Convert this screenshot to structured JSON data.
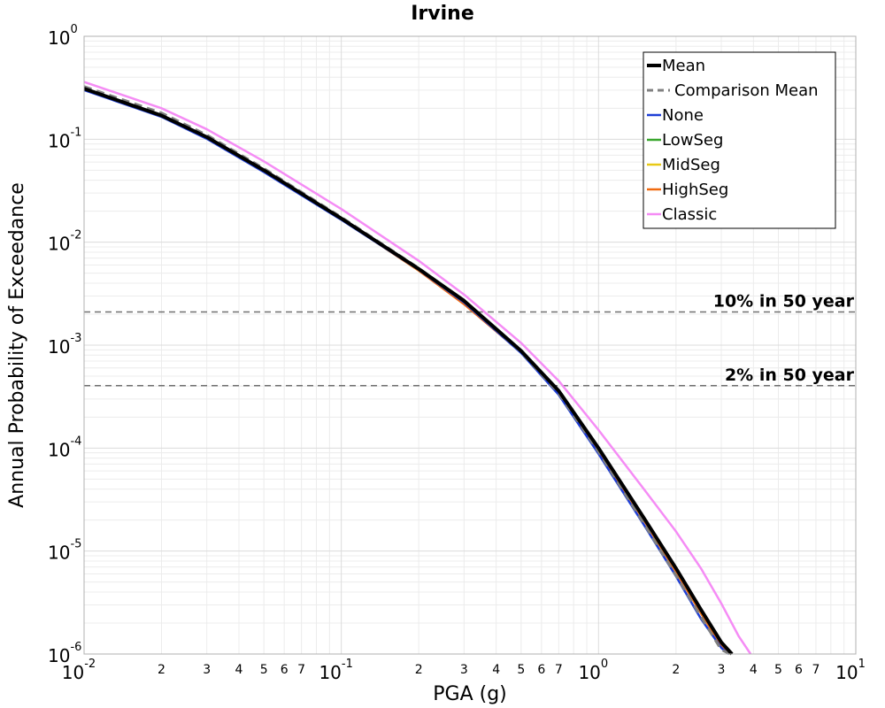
{
  "chart_data": {
    "type": "line",
    "title": "Irvine",
    "xlabel": "PGA (g)",
    "ylabel": "Annual Probability of Exceedance",
    "xscale": "log",
    "yscale": "log",
    "xlim": [
      0.01,
      10
    ],
    "ylim": [
      1e-06,
      1
    ],
    "grid": true,
    "legend_position": "top-right",
    "x_major_ticks": [
      {
        "base": "10",
        "exp": "-2"
      },
      {
        "base": "10",
        "exp": "-1"
      },
      {
        "base": "10",
        "exp": "0"
      },
      {
        "base": "10",
        "exp": "1"
      }
    ],
    "y_major_ticks": [
      {
        "base": "10",
        "exp": "0"
      },
      {
        "base": "10",
        "exp": "-1"
      },
      {
        "base": "10",
        "exp": "-2"
      },
      {
        "base": "10",
        "exp": "-3"
      },
      {
        "base": "10",
        "exp": "-4"
      },
      {
        "base": "10",
        "exp": "-5"
      },
      {
        "base": "10",
        "exp": "-6"
      }
    ],
    "x_minor_tick_labels": [
      "2",
      "3",
      "4",
      "5",
      "6",
      "7"
    ],
    "reference_lines": [
      {
        "label": "10% in 50 year",
        "y": 0.0021
      },
      {
        "label": "2% in 50 year",
        "y": 0.000404
      }
    ],
    "series": [
      {
        "name": "Mean",
        "color": "#000000",
        "style": "solid-thick",
        "x": [
          0.01,
          0.02,
          0.03,
          0.05,
          0.1,
          0.2,
          0.3,
          0.5,
          0.7,
          1.0,
          1.5,
          2.0,
          2.5,
          3.0,
          3.3
        ],
        "y": [
          0.31,
          0.17,
          0.105,
          0.05,
          0.017,
          0.0055,
          0.0027,
          0.00088,
          0.00036,
          0.0001,
          2.1e-05,
          6.8e-06,
          2.7e-06,
          1.3e-06,
          1e-06
        ]
      },
      {
        "name": "Comparison Mean",
        "color": "#808080",
        "style": "dashed",
        "x": [
          0.01,
          0.02,
          0.03,
          0.05,
          0.1,
          0.2,
          0.3,
          0.5,
          0.7,
          1.0,
          1.5,
          2.0,
          2.5,
          3.0,
          3.25
        ],
        "y": [
          0.325,
          0.18,
          0.11,
          0.052,
          0.0175,
          0.0056,
          0.0027,
          0.00086,
          0.00034,
          9.2e-05,
          1.85e-05,
          5.8e-06,
          2.3e-06,
          1.1e-06,
          1e-06
        ]
      },
      {
        "name": "None",
        "color": "#1f3fd6",
        "style": "solid",
        "x": [
          0.01,
          0.02,
          0.03,
          0.05,
          0.1,
          0.2,
          0.3,
          0.5,
          0.7,
          1.0,
          1.5,
          2.0,
          2.5,
          3.0,
          3.2
        ],
        "y": [
          0.3,
          0.165,
          0.101,
          0.048,
          0.0165,
          0.0054,
          0.0026,
          0.00084,
          0.00033,
          8.8e-05,
          1.8e-05,
          5.7e-06,
          2.2e-06,
          1.15e-06,
          1e-06
        ]
      },
      {
        "name": "LowSeg",
        "color": "#3aa62e",
        "style": "solid",
        "x": [
          0.01,
          0.02,
          0.03,
          0.05,
          0.1,
          0.2,
          0.3,
          0.5,
          0.7,
          1.0,
          1.5,
          2.0,
          2.5,
          3.0,
          3.25
        ],
        "y": [
          0.305,
          0.168,
          0.103,
          0.049,
          0.0168,
          0.0054,
          0.0026,
          0.00086,
          0.00035,
          9.5e-05,
          2e-05,
          6.3e-06,
          2.5e-06,
          1.2e-06,
          1e-06
        ]
      },
      {
        "name": "MidSeg",
        "color": "#e8c916",
        "style": "solid",
        "x": [
          0.01,
          0.02,
          0.03,
          0.05,
          0.1,
          0.2,
          0.3,
          0.5,
          0.7,
          1.0,
          1.5,
          2.0,
          2.5,
          3.0,
          3.25
        ],
        "y": [
          0.305,
          0.168,
          0.103,
          0.049,
          0.0168,
          0.0053,
          0.0026,
          0.00086,
          0.00035,
          9.5e-05,
          2e-05,
          6.3e-06,
          2.5e-06,
          1.2e-06,
          1e-06
        ]
      },
      {
        "name": "HighSeg",
        "color": "#f06a10",
        "style": "solid",
        "x": [
          0.01,
          0.02,
          0.03,
          0.05,
          0.1,
          0.2,
          0.3,
          0.5,
          0.7,
          1.0,
          1.5,
          2.0,
          2.5,
          3.0,
          3.25
        ],
        "y": [
          0.305,
          0.168,
          0.103,
          0.049,
          0.0168,
          0.0053,
          0.0025,
          0.00085,
          0.00035,
          9.5e-05,
          2e-05,
          6.3e-06,
          2.5e-06,
          1.2e-06,
          1e-06
        ]
      },
      {
        "name": "Classic",
        "color": "#f58cf5",
        "style": "solid",
        "x": [
          0.01,
          0.02,
          0.03,
          0.05,
          0.1,
          0.2,
          0.3,
          0.5,
          0.7,
          1.0,
          1.5,
          2.0,
          2.5,
          3.0,
          3.5,
          3.9
        ],
        "y": [
          0.36,
          0.2,
          0.125,
          0.061,
          0.021,
          0.0066,
          0.0031,
          0.00105,
          0.00045,
          0.00015,
          4e-05,
          1.55e-05,
          6.8e-06,
          3.1e-06,
          1.5e-06,
          1e-06
        ]
      }
    ]
  }
}
